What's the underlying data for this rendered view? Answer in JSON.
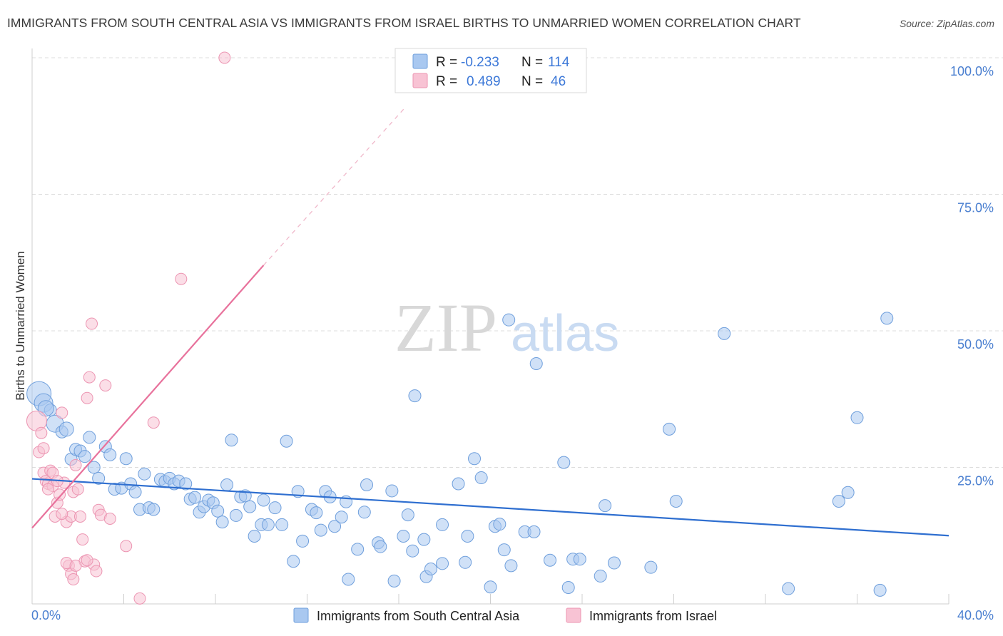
{
  "title": "IMMIGRANTS FROM SOUTH CENTRAL ASIA VS IMMIGRANTS FROM ISRAEL BIRTHS TO UNMARRIED WOMEN CORRELATION CHART",
  "source": "Source: ZipAtlas.com",
  "watermark": {
    "zip": "ZIP",
    "atlas": "atlas"
  },
  "legend": {
    "r_label": "R =",
    "n_label": "N =",
    "rows": [
      {
        "r": "-0.233",
        "n": "114",
        "color": "#a9c8f0",
        "stroke": "#6f9fdc"
      },
      {
        "r": "0.489",
        "n": "46",
        "color": "#f8c3d4",
        "stroke": "#ec95b2"
      }
    ]
  },
  "chart_data": {
    "type": "scatter",
    "title": "IMMIGRANTS FROM SOUTH CENTRAL ASIA VS IMMIGRANTS FROM ISRAEL BIRTHS TO UNMARRIED WOMEN CORRELATION CHART",
    "xlabel": "",
    "ylabel": "Births to Unmarried Women",
    "xlim": [
      0,
      40
    ],
    "ylim": [
      0,
      100
    ],
    "x_ticks": [
      "0.0%",
      "40.0%"
    ],
    "y_ticks": [
      {
        "value": 25,
        "label": "25.0%"
      },
      {
        "value": 50,
        "label": "50.0%"
      },
      {
        "value": 75,
        "label": "75.0%"
      },
      {
        "value": 100,
        "label": "100.0%"
      }
    ],
    "grid": true,
    "legend_position": "top-center",
    "series": [
      {
        "name": "Immigrants from South Central Asia",
        "color": "#a9c8f0",
        "stroke": "#6f9fdc",
        "trend": {
          "x0": 0,
          "y0": 22.9,
          "x1": 40,
          "y1": 12.5,
          "color": "#2f6fd0"
        },
        "points": [
          [
            0.3,
            38.5
          ],
          [
            0.5,
            36.8
          ],
          [
            0.8,
            35.5
          ],
          [
            1.0,
            33.0
          ],
          [
            1.3,
            31.5
          ],
          [
            1.5,
            32.0
          ],
          [
            1.7,
            26.5
          ],
          [
            1.9,
            28.3
          ],
          [
            2.1,
            28.0
          ],
          [
            2.3,
            27.0
          ],
          [
            2.5,
            30.5
          ],
          [
            2.7,
            25.0
          ],
          [
            2.9,
            23.0
          ],
          [
            3.2,
            28.8
          ],
          [
            3.4,
            27.3
          ],
          [
            3.6,
            21.0
          ],
          [
            3.9,
            21.2
          ],
          [
            4.1,
            26.6
          ],
          [
            4.3,
            22.0
          ],
          [
            4.5,
            20.5
          ],
          [
            4.7,
            17.3
          ],
          [
            4.9,
            23.8
          ],
          [
            5.1,
            17.6
          ],
          [
            5.3,
            17.3
          ],
          [
            5.6,
            22.8
          ],
          [
            5.8,
            22.4
          ],
          [
            6.0,
            23.0
          ],
          [
            6.2,
            22.0
          ],
          [
            6.4,
            22.5
          ],
          [
            6.7,
            22.0
          ],
          [
            6.9,
            19.2
          ],
          [
            7.1,
            19.5
          ],
          [
            7.3,
            16.8
          ],
          [
            7.5,
            17.8
          ],
          [
            7.7,
            19.0
          ],
          [
            7.9,
            18.5
          ],
          [
            8.1,
            17.0
          ],
          [
            8.3,
            15.0
          ],
          [
            8.5,
            21.8
          ],
          [
            8.7,
            30.0
          ],
          [
            8.9,
            16.2
          ],
          [
            9.1,
            19.6
          ],
          [
            9.3,
            19.8
          ],
          [
            9.5,
            17.8
          ],
          [
            9.7,
            12.4
          ],
          [
            10.0,
            14.5
          ],
          [
            10.1,
            19.0
          ],
          [
            10.3,
            14.5
          ],
          [
            10.6,
            17.6
          ],
          [
            10.9,
            14.5
          ],
          [
            11.1,
            29.8
          ],
          [
            11.4,
            7.8
          ],
          [
            11.6,
            20.6
          ],
          [
            11.8,
            11.5
          ],
          [
            12.2,
            17.3
          ],
          [
            12.4,
            16.7
          ],
          [
            12.6,
            13.5
          ],
          [
            12.8,
            20.6
          ],
          [
            13.0,
            19.6
          ],
          [
            13.2,
            14.2
          ],
          [
            13.5,
            15.9
          ],
          [
            13.7,
            18.7
          ],
          [
            13.8,
            4.5
          ],
          [
            14.2,
            10.0
          ],
          [
            14.5,
            16.8
          ],
          [
            14.6,
            21.8
          ],
          [
            15.1,
            11.2
          ],
          [
            15.2,
            10.5
          ],
          [
            15.7,
            20.7
          ],
          [
            15.8,
            4.2
          ],
          [
            16.2,
            12.4
          ],
          [
            16.4,
            16.3
          ],
          [
            16.6,
            9.7
          ],
          [
            16.7,
            38.1
          ],
          [
            17.1,
            11.8
          ],
          [
            17.2,
            5.0
          ],
          [
            17.4,
            6.4
          ],
          [
            17.9,
            7.4
          ],
          [
            17.9,
            14.5
          ],
          [
            18.6,
            22.0
          ],
          [
            18.9,
            7.6
          ],
          [
            19.0,
            12.4
          ],
          [
            19.3,
            26.6
          ],
          [
            19.6,
            23.1
          ],
          [
            20.0,
            3.1
          ],
          [
            20.2,
            14.2
          ],
          [
            20.4,
            14.6
          ],
          [
            20.6,
            9.9
          ],
          [
            20.8,
            52.0
          ],
          [
            20.9,
            7.0
          ],
          [
            21.5,
            13.2
          ],
          [
            21.9,
            13.2
          ],
          [
            22.0,
            44.0
          ],
          [
            22.6,
            8.0
          ],
          [
            23.2,
            25.9
          ],
          [
            23.4,
            3.0
          ],
          [
            23.6,
            8.2
          ],
          [
            23.9,
            8.2
          ],
          [
            24.8,
            5.1
          ],
          [
            25.0,
            18.0
          ],
          [
            25.4,
            7.5
          ],
          [
            27.0,
            6.7
          ],
          [
            27.8,
            32.0
          ],
          [
            28.1,
            18.8
          ],
          [
            30.2,
            49.5
          ],
          [
            33.0,
            2.8
          ],
          [
            35.2,
            18.8
          ],
          [
            35.6,
            20.4
          ],
          [
            36.0,
            34.1
          ],
          [
            37.0,
            2.5
          ],
          [
            37.3,
            52.3
          ],
          [
            0.6,
            35.8
          ]
        ]
      },
      {
        "name": "Immigrants from Israel",
        "color": "#f8c3d4",
        "stroke": "#ec95b2",
        "trend": {
          "x0": 0,
          "y0": 13.9,
          "x1": 10.1,
          "y1": 62.0,
          "color": "#e8729c"
        },
        "trend_dashed": {
          "x0": 10.1,
          "y0": 62.0,
          "x1": 16.3,
          "y1": 91.0
        },
        "points": [
          [
            0.2,
            33.5
          ],
          [
            0.3,
            27.8
          ],
          [
            0.4,
            31.3
          ],
          [
            0.5,
            24.0
          ],
          [
            0.6,
            22.5
          ],
          [
            0.7,
            22.0
          ],
          [
            0.8,
            24.4
          ],
          [
            0.9,
            21.6
          ],
          [
            1.0,
            16.0
          ],
          [
            1.1,
            18.5
          ],
          [
            1.2,
            20.0
          ],
          [
            1.3,
            35.0
          ],
          [
            1.4,
            22.2
          ],
          [
            1.5,
            15.0
          ],
          [
            1.6,
            7.0
          ],
          [
            1.7,
            16.0
          ],
          [
            1.8,
            20.5
          ],
          [
            1.9,
            25.4
          ],
          [
            2.0,
            21.0
          ],
          [
            2.1,
            16.0
          ],
          [
            2.2,
            11.8
          ],
          [
            2.3,
            7.8
          ],
          [
            2.4,
            37.7
          ],
          [
            2.5,
            41.5
          ],
          [
            2.6,
            51.3
          ],
          [
            2.7,
            7.2
          ],
          [
            2.8,
            6.0
          ],
          [
            2.9,
            17.2
          ],
          [
            3.0,
            16.3
          ],
          [
            3.2,
            40.0
          ],
          [
            3.4,
            15.6
          ],
          [
            4.1,
            10.6
          ],
          [
            4.7,
            1.0
          ],
          [
            5.3,
            33.2
          ],
          [
            6.5,
            59.5
          ],
          [
            8.4,
            100.0
          ],
          [
            0.5,
            28.5
          ],
          [
            0.9,
            24.0
          ],
          [
            1.7,
            5.5
          ],
          [
            1.8,
            4.5
          ],
          [
            1.5,
            7.5
          ],
          [
            2.4,
            8.0
          ],
          [
            0.7,
            21.0
          ],
          [
            1.1,
            22.5
          ],
          [
            1.9,
            7.0
          ],
          [
            1.3,
            16.5
          ]
        ]
      }
    ]
  },
  "bottom_legend": [
    {
      "label": "Immigrants from South Central Asia",
      "color": "#a9c8f0",
      "stroke": "#6f9fdc"
    },
    {
      "label": "Immigrants from Israel",
      "color": "#f8c3d4",
      "stroke": "#ec95b2"
    }
  ]
}
